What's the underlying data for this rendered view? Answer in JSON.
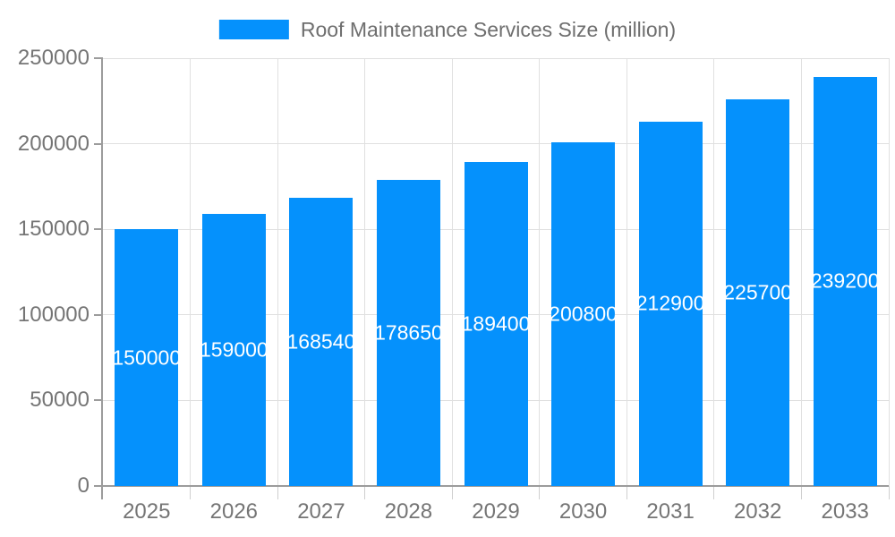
{
  "chart_data": {
    "type": "bar",
    "title": "",
    "legend": {
      "label": "Roof Maintenance Services Size (million)",
      "position": "top"
    },
    "categories": [
      "2025",
      "2026",
      "2027",
      "2028",
      "2029",
      "2030",
      "2031",
      "2032",
      "2033"
    ],
    "series": [
      {
        "name": "Roof Maintenance Services Size (million)",
        "values": [
          150000,
          159000,
          168540,
          178650,
          189400,
          200800,
          212900,
          225700,
          239200
        ]
      }
    ],
    "bar_value_labels": [
      "150000",
      "159000",
      "168540",
      "178650",
      "189400",
      "200800",
      "212900",
      "225700",
      "239200"
    ],
    "xlabel": "",
    "ylabel": "",
    "ylim": [
      0,
      250000
    ],
    "yticks": [
      0,
      50000,
      100000,
      150000,
      200000,
      250000
    ],
    "ytick_labels": [
      "0",
      "50000",
      "100000",
      "150000",
      "200000",
      "250000"
    ],
    "grid": true,
    "legend_visible": true,
    "colors": {
      "bar": "#0591fc",
      "grid": "#e0e0e0",
      "axis": "#9c9c9c",
      "x_tick": "#cfcfcf",
      "tick_label": "#757575",
      "legend_label": "#6e6e6e",
      "bar_value_label": "#ffffff",
      "background": "#ffffff"
    }
  }
}
